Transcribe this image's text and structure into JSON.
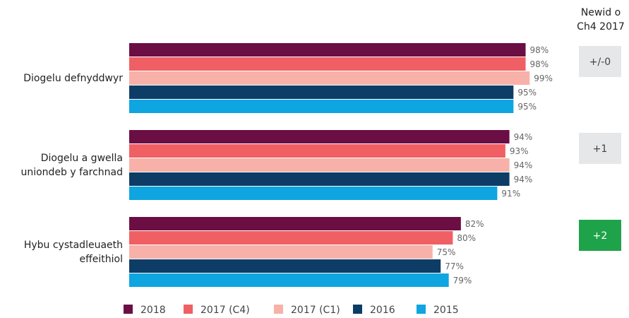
{
  "chart_data": {
    "type": "bar",
    "orientation": "horizontal",
    "categories": [
      "Diogelu defnyddwyr",
      "Diogelu a gwella\nuniondeb y farchnad",
      "Hybu cystadleuaeth\neffeithiol"
    ],
    "xlim": [
      0,
      100
    ],
    "series": [
      {
        "name": "2018",
        "color": "#6b0e44",
        "values": [
          98,
          94,
          82
        ],
        "value_labels": [
          "98%",
          "94%",
          "82%"
        ]
      },
      {
        "name": "2017 (C4)",
        "color": "#f05f64",
        "values": [
          98,
          93,
          80
        ],
        "value_labels": [
          "98%",
          "93%",
          "80%"
        ]
      },
      {
        "name": "2017 (C1)",
        "color": "#f7b1a8",
        "values": [
          99,
          94,
          75
        ],
        "value_labels": [
          "99%",
          "94%",
          "75%"
        ]
      },
      {
        "name": "2016",
        "color": "#0d3d66",
        "values": [
          95,
          94,
          77
        ],
        "value_labels": [
          "95%",
          "94%",
          "77%"
        ]
      },
      {
        "name": "2015",
        "color": "#0ea5e0",
        "values": [
          95,
          91,
          79
        ],
        "value_labels": [
          "95%",
          "91%",
          "79%"
        ]
      }
    ],
    "change": {
      "title": "Newid o\nCh4 2017",
      "labels": [
        "+/-0",
        "+1",
        "+2"
      ],
      "colors": [
        "#e6e7e8",
        "#e6e7e8",
        "#1fa34a"
      ],
      "text_colors": [
        "#444",
        "#444",
        "#fff"
      ]
    }
  }
}
